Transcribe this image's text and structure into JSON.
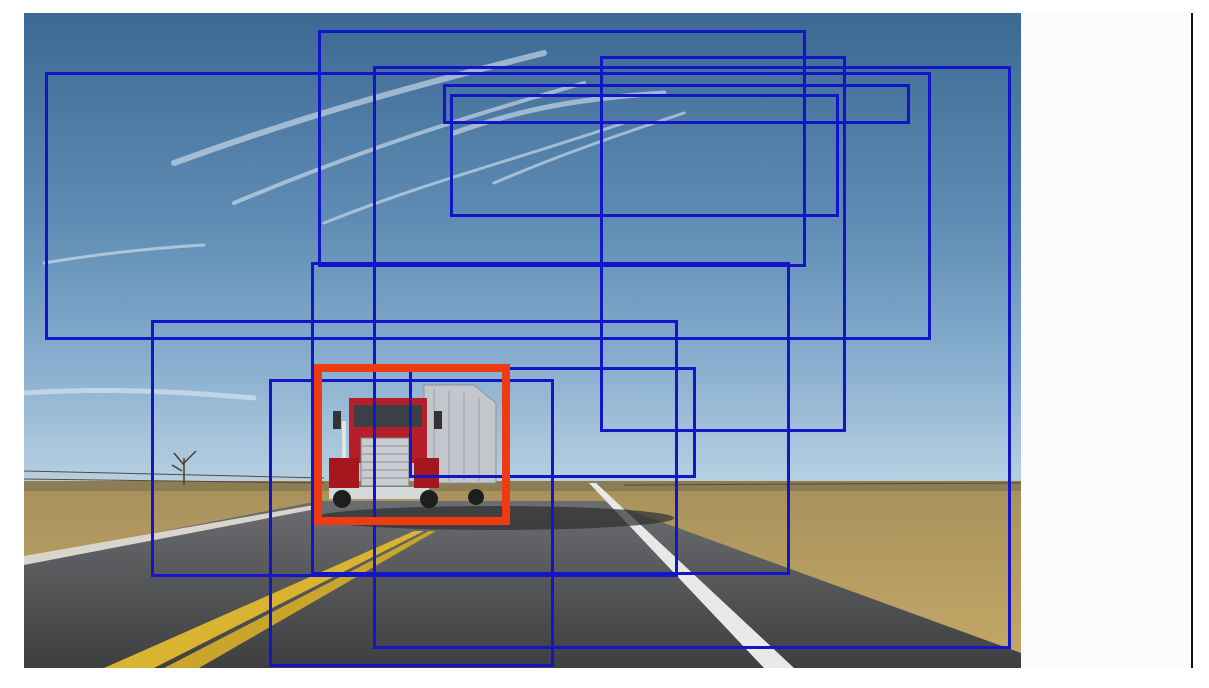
{
  "image": {
    "subject": "semi-truck-on-highway",
    "colors": {
      "proposal_box": "#1414c8",
      "selected_box": "#ef3b12",
      "sky_top": "#3e6b97",
      "sky_bottom": "#a9c6dc",
      "grass": "#b79c5c",
      "road": "#4a4b4c",
      "truck_cab": "#b8202a",
      "trailer": "#c9ccd0"
    }
  },
  "proposals": [
    {
      "id": "proposal-1"
    },
    {
      "id": "proposal-2"
    },
    {
      "id": "proposal-3"
    },
    {
      "id": "proposal-4"
    },
    {
      "id": "proposal-5"
    },
    {
      "id": "proposal-6"
    },
    {
      "id": "proposal-7"
    },
    {
      "id": "proposal-8"
    },
    {
      "id": "proposal-9"
    },
    {
      "id": "proposal-10"
    },
    {
      "id": "proposal-11"
    }
  ],
  "selected_proposal": {
    "id": "selected-truck-box"
  }
}
